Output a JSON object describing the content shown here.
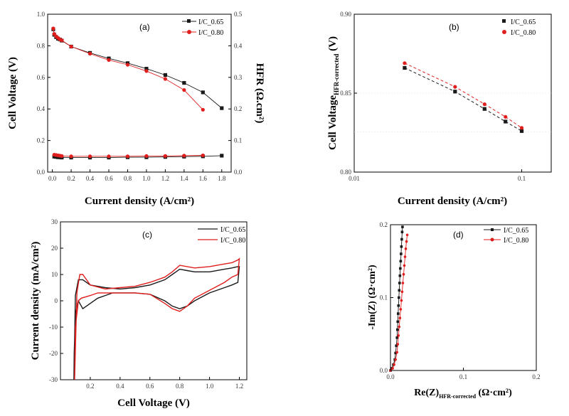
{
  "colors": {
    "black": "#1a1a1a",
    "red": "#e01e1e"
  },
  "chart_data": [
    {
      "id": "a",
      "type": "line",
      "panel_label": "(a)",
      "xlabel": "Current density (A/cm²)",
      "ylabel": "Cell Voltage (V)",
      "y2label": "HFR (Ω.cm²)",
      "xlim": [
        -0.05,
        1.9
      ],
      "ylim": [
        0,
        1.0
      ],
      "y2lim": [
        0,
        0.5
      ],
      "xticks": [
        0.0,
        0.2,
        0.4,
        0.6,
        0.8,
        1.0,
        1.2,
        1.4,
        1.6,
        1.8
      ],
      "xtick_labels": [
        "0.0",
        "0.2",
        "0.4",
        "0.6",
        "0.8",
        "1.0",
        "1.2",
        "1.4",
        "1.6",
        "1.8"
      ],
      "yticks": [
        0,
        0.2,
        0.4,
        0.6,
        0.8,
        1.0
      ],
      "ytick_labels": [
        "0.0",
        "0.2",
        "0.4",
        "0.6",
        "0.8",
        "1.0"
      ],
      "y2ticks": [
        0,
        0.1,
        0.2,
        0.3,
        0.4,
        0.5
      ],
      "y2tick_labels": [
        "0.0",
        "0.1",
        "0.2",
        "0.3",
        "0.4",
        "0.5"
      ],
      "legend": [
        "I/C_0.65",
        "I/C_0.80"
      ],
      "legend_position": "top-right",
      "series": [
        {
          "name": "I/C_0.65",
          "axis": "left",
          "color": "black",
          "marker": "square",
          "x": [
            0.01,
            0.02,
            0.04,
            0.06,
            0.08,
            0.1,
            0.2,
            0.4,
            0.6,
            0.8,
            1.0,
            1.2,
            1.4,
            1.6,
            1.8
          ],
          "y": [
            0.905,
            0.87,
            0.855,
            0.845,
            0.84,
            0.833,
            0.795,
            0.755,
            0.72,
            0.69,
            0.655,
            0.615,
            0.565,
            0.505,
            0.405
          ]
        },
        {
          "name": "I/C_0.80",
          "axis": "left",
          "color": "red",
          "marker": "circle",
          "x": [
            0.01,
            0.02,
            0.04,
            0.06,
            0.08,
            0.1,
            0.2,
            0.4,
            0.6,
            0.8,
            1.0,
            1.2,
            1.4,
            1.6
          ],
          "y": [
            0.91,
            0.875,
            0.86,
            0.85,
            0.84,
            0.835,
            0.795,
            0.75,
            0.71,
            0.68,
            0.64,
            0.59,
            0.52,
            0.395
          ]
        },
        {
          "name": "I/C_0.65 HFR",
          "axis": "right",
          "color": "black",
          "marker": "square",
          "x": [
            0.02,
            0.04,
            0.06,
            0.08,
            0.1,
            0.2,
            0.4,
            0.6,
            0.8,
            1.0,
            1.2,
            1.4,
            1.6,
            1.8
          ],
          "y": [
            0.049,
            0.048,
            0.047,
            0.047,
            0.046,
            0.046,
            0.046,
            0.046,
            0.047,
            0.047,
            0.048,
            0.049,
            0.05,
            0.052
          ]
        },
        {
          "name": "I/C_0.80 HFR",
          "axis": "right",
          "color": "red",
          "marker": "circle",
          "x": [
            0.02,
            0.04,
            0.06,
            0.08,
            0.1,
            0.2,
            0.4,
            0.6,
            0.8,
            1.0,
            1.2,
            1.4,
            1.6
          ],
          "y": [
            0.055,
            0.054,
            0.053,
            0.052,
            0.051,
            0.05,
            0.05,
            0.05,
            0.05,
            0.051,
            0.051,
            0.052,
            0.053
          ]
        }
      ]
    },
    {
      "id": "b",
      "type": "scatter",
      "panel_label": "(b)",
      "xlabel": "Current density (A/cm²)",
      "ylabel_main": "Cell Voltage",
      "ylabel_sub": "HFR-corrected",
      "ylabel_unit": " (V)",
      "xscale": "log",
      "xlim": [
        0.01,
        0.15
      ],
      "ylim": [
        0.8,
        0.9
      ],
      "xticks": [
        0.01,
        0.1
      ],
      "xtick_labels": [
        "0.01",
        "0.1"
      ],
      "yticks": [
        0.8,
        0.85,
        0.9
      ],
      "ytick_labels": [
        "0.80",
        "0.85",
        "0.90"
      ],
      "legend": [
        "I/C_0.65",
        "I/C_0.80"
      ],
      "legend_position": "top-right",
      "series": [
        {
          "name": "I/C_0.65",
          "color": "black",
          "marker": "square",
          "x": [
            0.02,
            0.04,
            0.06,
            0.08,
            0.1
          ],
          "y": [
            0.866,
            0.851,
            0.84,
            0.832,
            0.826
          ]
        },
        {
          "name": "I/C_0.80",
          "color": "red",
          "marker": "circle",
          "x": [
            0.02,
            0.04,
            0.06,
            0.08,
            0.1
          ],
          "y": [
            0.869,
            0.854,
            0.843,
            0.835,
            0.828
          ]
        }
      ]
    },
    {
      "id": "c",
      "type": "line",
      "panel_label": "(c)",
      "xlabel": "Cell Voltage (V)",
      "ylabel": "Current density (mA/cm²)",
      "xlim": [
        0,
        1.25
      ],
      "ylim": [
        -30,
        30
      ],
      "xticks": [
        0.2,
        0.4,
        0.6,
        0.8,
        1.0,
        1.2
      ],
      "xtick_labels": [
        "0.2",
        "0.4",
        "0.6",
        "0.8",
        "1.0",
        "1.2"
      ],
      "yticks": [
        -30,
        -20,
        -10,
        0,
        10,
        20,
        30
      ],
      "ytick_labels": [
        "-30",
        "-20",
        "-10",
        "0",
        "10",
        "20",
        "30"
      ],
      "legend": [
        "I/C_0.65",
        "I/C_0.80"
      ],
      "legend_position": "top-right",
      "series": [
        {
          "name": "I/C_0.65",
          "color": "black",
          "x": [
            0.09,
            0.092,
            0.1,
            0.12,
            0.15,
            0.2,
            0.25,
            0.3,
            0.35,
            0.4,
            0.5,
            0.6,
            0.7,
            0.75,
            0.8,
            0.85,
            0.9,
            1.0,
            1.1,
            1.15,
            1.19,
            1.2,
            1.19,
            1.15,
            1.1,
            1.0,
            0.9,
            0.85,
            0.8,
            0.75,
            0.7,
            0.6,
            0.5,
            0.4,
            0.3,
            0.2,
            0.15,
            0.12,
            0.1,
            0.09
          ],
          "y": [
            -30,
            -20,
            -5,
            0,
            -3,
            -1,
            1,
            2,
            3,
            3,
            3,
            2.5,
            0,
            -2,
            -3,
            -2,
            0,
            3,
            5,
            6,
            7,
            13,
            13,
            12.5,
            12,
            11,
            11,
            11.5,
            12,
            10,
            8,
            6,
            5,
            4.5,
            5,
            6,
            8,
            8,
            2,
            -30
          ]
        },
        {
          "name": "I/C_0.80",
          "color": "red",
          "x": [
            0.095,
            0.1,
            0.12,
            0.14,
            0.2,
            0.25,
            0.3,
            0.35,
            0.4,
            0.5,
            0.6,
            0.7,
            0.75,
            0.8,
            0.85,
            0.9,
            1.0,
            1.1,
            1.15,
            1.19,
            1.2,
            1.19,
            1.15,
            1.1,
            1.0,
            0.9,
            0.8,
            0.75,
            0.7,
            0.6,
            0.5,
            0.4,
            0.3,
            0.2,
            0.15,
            0.13,
            0.11,
            0.095
          ],
          "y": [
            -30,
            -10,
            0,
            1,
            2,
            3,
            3,
            3,
            3,
            3,
            2.5,
            -1,
            -3,
            -4,
            -2,
            1,
            4,
            7,
            9,
            10,
            16,
            15.5,
            14.5,
            14,
            13,
            12.5,
            13.5,
            11,
            9,
            7,
            5.5,
            5,
            4.5,
            6,
            10,
            10,
            3,
            -30
          ]
        }
      ]
    },
    {
      "id": "d",
      "type": "line",
      "panel_label": "(d)",
      "xlabel_main": "Re(Z)",
      "xlabel_sub": "HFR-corrected",
      "xlabel_unit": " (Ω·cm²)",
      "ylabel": "-Im(Z) (Ω·cm²)",
      "xlim": [
        0,
        0.2
      ],
      "ylim": [
        0,
        0.2
      ],
      "xticks": [
        0.0,
        0.1,
        0.2
      ],
      "xtick_labels": [
        "0.0",
        "0.1",
        "0.2"
      ],
      "yticks": [
        0.0,
        0.1,
        0.2
      ],
      "ytick_labels": [
        "0.0",
        "0.1",
        "0.2"
      ],
      "legend": [
        "I/C_0.65",
        "I/C_0.80"
      ],
      "legend_position": "top-right",
      "series": [
        {
          "name": "I/C_0.65",
          "color": "black",
          "marker": "square",
          "x": [
            0.0,
            0.002,
            0.004,
            0.006,
            0.007,
            0.008,
            0.009,
            0.0095,
            0.01,
            0.0105,
            0.011,
            0.0115,
            0.012,
            0.0125,
            0.013,
            0.0135,
            0.014,
            0.0145,
            0.015,
            0.0155,
            0.016,
            0.0165
          ],
          "y": [
            0.0,
            0.003,
            0.008,
            0.015,
            0.024,
            0.034,
            0.045,
            0.056,
            0.067,
            0.078,
            0.089,
            0.1,
            0.11,
            0.12,
            0.13,
            0.14,
            0.15,
            0.16,
            0.17,
            0.18,
            0.19,
            0.197
          ]
        },
        {
          "name": "I/C_0.80",
          "color": "red",
          "marker": "circle",
          "x": [
            0.0,
            0.003,
            0.005,
            0.007,
            0.009,
            0.01,
            0.011,
            0.012,
            0.013,
            0.014,
            0.015,
            0.016,
            0.017,
            0.018,
            0.019,
            0.02,
            0.021,
            0.022,
            0.023
          ],
          "y": [
            0.0,
            0.003,
            0.008,
            0.015,
            0.025,
            0.036,
            0.048,
            0.06,
            0.072,
            0.084,
            0.096,
            0.108,
            0.12,
            0.132,
            0.144,
            0.156,
            0.167,
            0.177,
            0.186
          ]
        }
      ]
    }
  ]
}
